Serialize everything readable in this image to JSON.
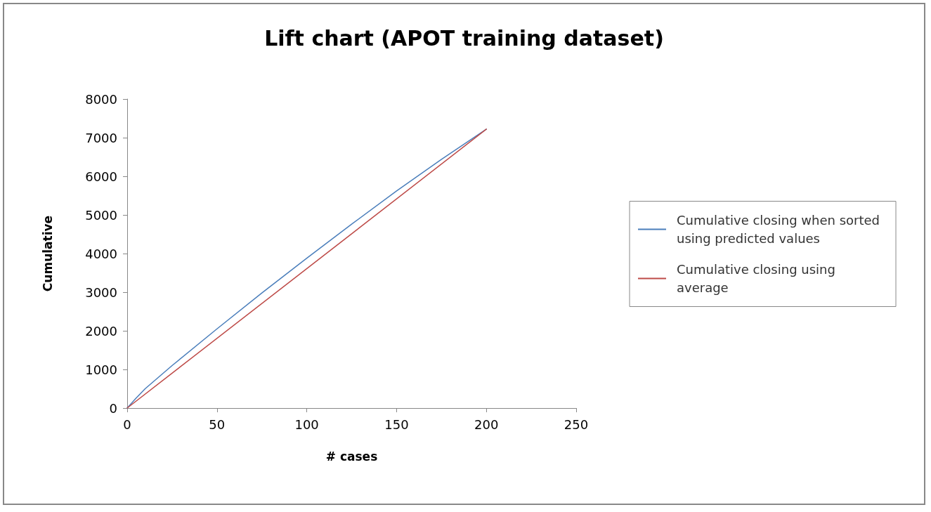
{
  "chart_data": {
    "type": "line",
    "title": "Lift chart (APOT training dataset)",
    "xlabel": "# cases",
    "ylabel": "Cumulative",
    "xlim": [
      0,
      250
    ],
    "xticks": [
      0,
      50,
      100,
      150,
      200,
      250
    ],
    "ylim": [
      0,
      8000
    ],
    "yticks": [
      0,
      1000,
      2000,
      3000,
      4000,
      5000,
      6000,
      7000,
      8000
    ],
    "grid": false,
    "legend": "right",
    "marker": "none",
    "line_style": "solid",
    "series": [
      {
        "name": "Cumulative closing when sorted using predicted values",
        "color": "#4a7ebb",
        "x": [
          0,
          5,
          10,
          15,
          25,
          50,
          75,
          100,
          125,
          150,
          175,
          200
        ],
        "values": [
          0,
          260,
          500,
          700,
          1100,
          2050,
          2980,
          3880,
          4760,
          5620,
          6440,
          7220
        ]
      },
      {
        "name": "Cumulative closing using average",
        "color": "#be4b48",
        "x": [
          0,
          200
        ],
        "values": [
          0,
          7220
        ]
      }
    ]
  }
}
